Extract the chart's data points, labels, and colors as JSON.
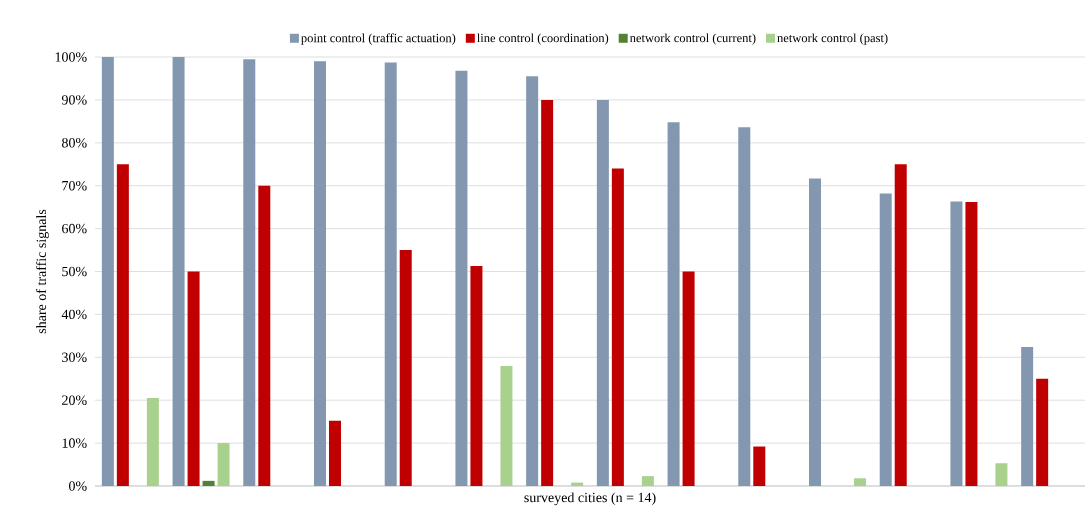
{
  "chart_data": {
    "type": "bar",
    "xlabel": "surveyed cities (n = 14)",
    "ylabel": "share of traffic signals",
    "categories": [
      null,
      null,
      null,
      null,
      null,
      null,
      null,
      null,
      null,
      null,
      null,
      null,
      null,
      null
    ],
    "series": [
      {
        "name": "point control (traffic actuation)",
        "color": "#8497b0",
        "values": [
          100,
          100,
          99.5,
          99,
          98.7,
          96.8,
          95.5,
          90,
          84.8,
          83.6,
          71.7,
          68.2,
          66.3,
          32.4
        ]
      },
      {
        "name": "line control (coordination)",
        "color": "#c00000",
        "values": [
          75,
          50,
          70,
          15.2,
          55,
          51.3,
          90,
          74,
          50,
          9.2,
          null,
          75,
          66.2,
          25
        ]
      },
      {
        "name": "network control (current)",
        "color": "#548235",
        "values": [
          null,
          1.2,
          null,
          null,
          null,
          null,
          null,
          null,
          null,
          null,
          null,
          null,
          null,
          null
        ]
      },
      {
        "name": "network control (past)",
        "color": "#a9d18e",
        "values": [
          20.5,
          10,
          null,
          null,
          null,
          28,
          0.8,
          2.3,
          null,
          null,
          1.8,
          null,
          5.3,
          null
        ]
      }
    ],
    "ylim": [
      0,
      100
    ],
    "yticks": [
      {
        "value": 0,
        "label": "0%"
      },
      {
        "value": 10,
        "label": "10%"
      },
      {
        "value": 20,
        "label": "20%"
      },
      {
        "value": 30,
        "label": "30%"
      },
      {
        "value": 40,
        "label": "40%"
      },
      {
        "value": 50,
        "label": "50%"
      },
      {
        "value": 60,
        "label": "60%"
      },
      {
        "value": 70,
        "label": "70%"
      },
      {
        "value": 80,
        "label": "80%"
      },
      {
        "value": 90,
        "label": "90%"
      },
      {
        "value": 100,
        "label": "100%"
      }
    ],
    "grid": "y",
    "legend": "top"
  }
}
